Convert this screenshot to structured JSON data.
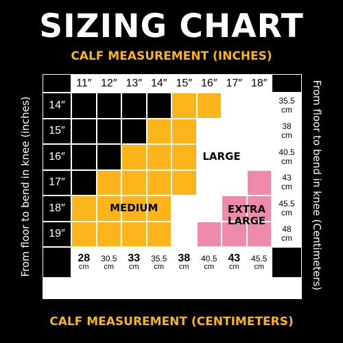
{
  "title": "SIZING CHART",
  "subtitle_top": "CALF MEASUREMENT (INCHES)",
  "subtitle_bottom": "CALF MEASUREMENT (CENTIMETERS)",
  "left_axis_label": "From floor to bend in knee (inches)",
  "right_axis_label": "From floor to bend in knee (Centimeters)",
  "columns_in": [
    "11″",
    "12″",
    "13″",
    "14″",
    "15″",
    "16″",
    "17″",
    "18″"
  ],
  "columns_cm": [
    {
      "n": "28",
      "u": "cm"
    },
    {
      "n": "30.5",
      "u": "cm"
    },
    {
      "n": "33",
      "u": "cm"
    },
    {
      "n": "35.5",
      "u": "cm"
    },
    {
      "n": "38",
      "u": "cm"
    },
    {
      "n": "40.5",
      "u": "cm"
    },
    {
      "n": "43",
      "u": "cm"
    },
    {
      "n": "45.5",
      "u": "cm"
    }
  ],
  "rows_in": [
    "14″",
    "15″",
    "16″",
    "17″",
    "18″",
    "19″"
  ],
  "rows_cm": [
    {
      "n": "35.5",
      "u": "cm"
    },
    {
      "n": "38",
      "u": "cm"
    },
    {
      "n": "40.5",
      "u": "cm"
    },
    {
      "n": "43",
      "u": "cm"
    },
    {
      "n": "45.5",
      "u": "cm"
    },
    {
      "n": "48",
      "u": "cm"
    }
  ],
  "size_grid": [
    [
      "none",
      "none",
      "none",
      "none",
      "medium",
      "medium",
      "large",
      "large"
    ],
    [
      "none",
      "none",
      "none",
      "medium",
      "medium",
      "large",
      "large",
      "large"
    ],
    [
      "none",
      "none",
      "medium",
      "medium",
      "medium",
      "large",
      "large",
      "large"
    ],
    [
      "none",
      "medium",
      "medium",
      "medium",
      "medium",
      "large",
      "large",
      "extra-large"
    ],
    [
      "medium",
      "medium",
      "medium",
      "medium",
      "large",
      "large",
      "extra-large",
      "extra-large"
    ],
    [
      "medium",
      "medium",
      "medium",
      "medium",
      "large",
      "extra-large",
      "extra-large",
      "extra-large"
    ]
  ],
  "zones": {
    "medium": {
      "label": "MEDIUM"
    },
    "large": {
      "label": "LARGE"
    },
    "extra_large": {
      "line1": "EXTRA",
      "line2": "LARGE"
    }
  },
  "colors": {
    "background": "#000000",
    "medium": "#fbb51b",
    "large": "#ffffff",
    "extra-large": "#f08aaa",
    "none": "#000000",
    "grid_line": "#000000",
    "subtitle": "#fbb51b"
  }
}
